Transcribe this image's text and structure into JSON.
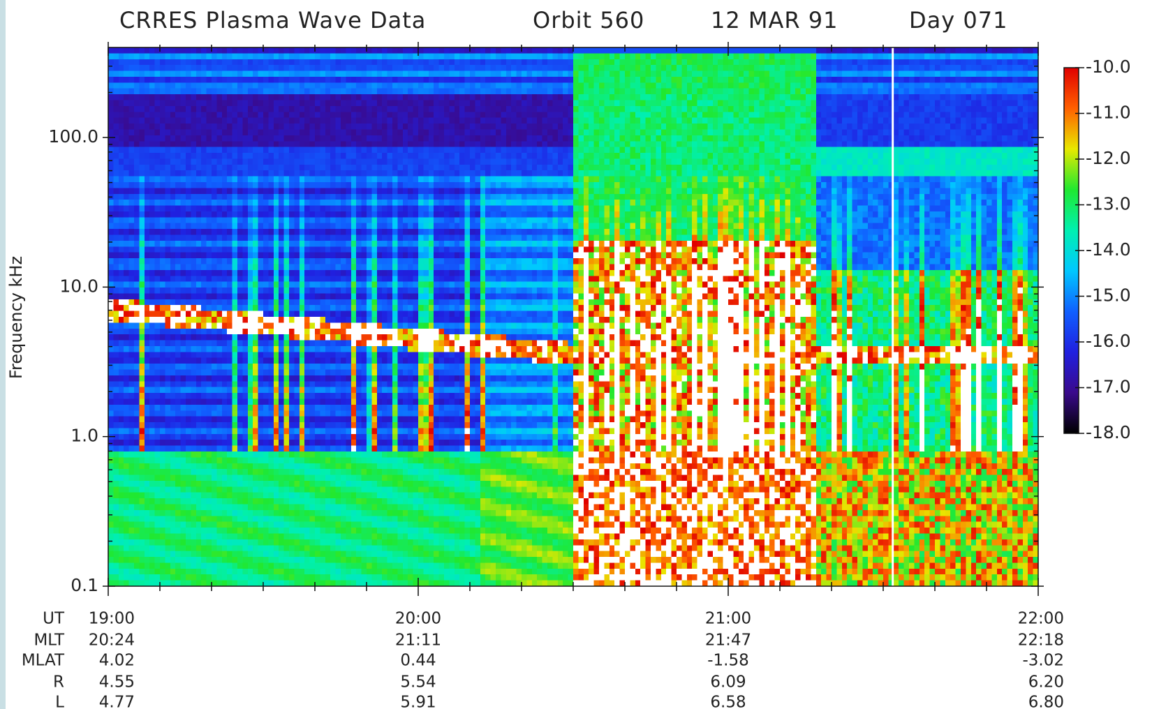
{
  "chart_data": {
    "type": "spectrogram",
    "title_parts": [
      "CRRES Plasma Wave Data",
      "Orbit 560",
      "12 MAR 91",
      "Day 071"
    ],
    "y_label": "Frequency  kHz",
    "ylog": true,
    "ylim": [
      0.1,
      400
    ],
    "yticks": [
      0.1,
      {
        "value": 1,
        "label": "1.0"
      },
      {
        "value": 10,
        "label": "10.0"
      },
      {
        "value": 100,
        "label": "100.0"
      }
    ],
    "xticks": [
      "19:00",
      "20:00",
      "21:00",
      "22:00"
    ],
    "colorbar": {
      "lim": [
        -18,
        -10
      ],
      "ticks": [
        {
          "value": -10,
          "label": "-10.0"
        },
        {
          "value": -11,
          "label": "-11.0"
        },
        {
          "value": -12,
          "label": "-12.0"
        },
        {
          "value": -13,
          "label": "-13.0"
        },
        {
          "value": -14,
          "label": "-14.0"
        },
        {
          "value": -15,
          "label": "-15.0"
        },
        {
          "value": -16,
          "label": "-16.0"
        },
        {
          "value": -17,
          "label": "-17.0"
        },
        {
          "value": -18,
          "label": "-18.0"
        }
      ],
      "colors": [
        "#000000",
        "#3a0a8c",
        "#2020e0",
        "#1060ff",
        "#00c8ff",
        "#00f0b0",
        "#20e830",
        "#e8e800",
        "#ff6000",
        "#e00000"
      ]
    },
    "ephemeris": [
      {
        "label": "UT"
      },
      {
        "label": "MLT",
        "values": [
          "20:24",
          "21:11",
          "21:47",
          "22:18"
        ]
      },
      {
        "label": "MLAT",
        "values": [
          "4.02",
          "0.44",
          "-1.58",
          "-3.02"
        ]
      },
      {
        "label": "R",
        "values": [
          "4.55",
          "5.54",
          "6.09",
          "6.20"
        ]
      },
      {
        "label": "L",
        "values": [
          "4.77",
          "5.91",
          "6.58",
          "6.80"
        ]
      }
    ]
  }
}
